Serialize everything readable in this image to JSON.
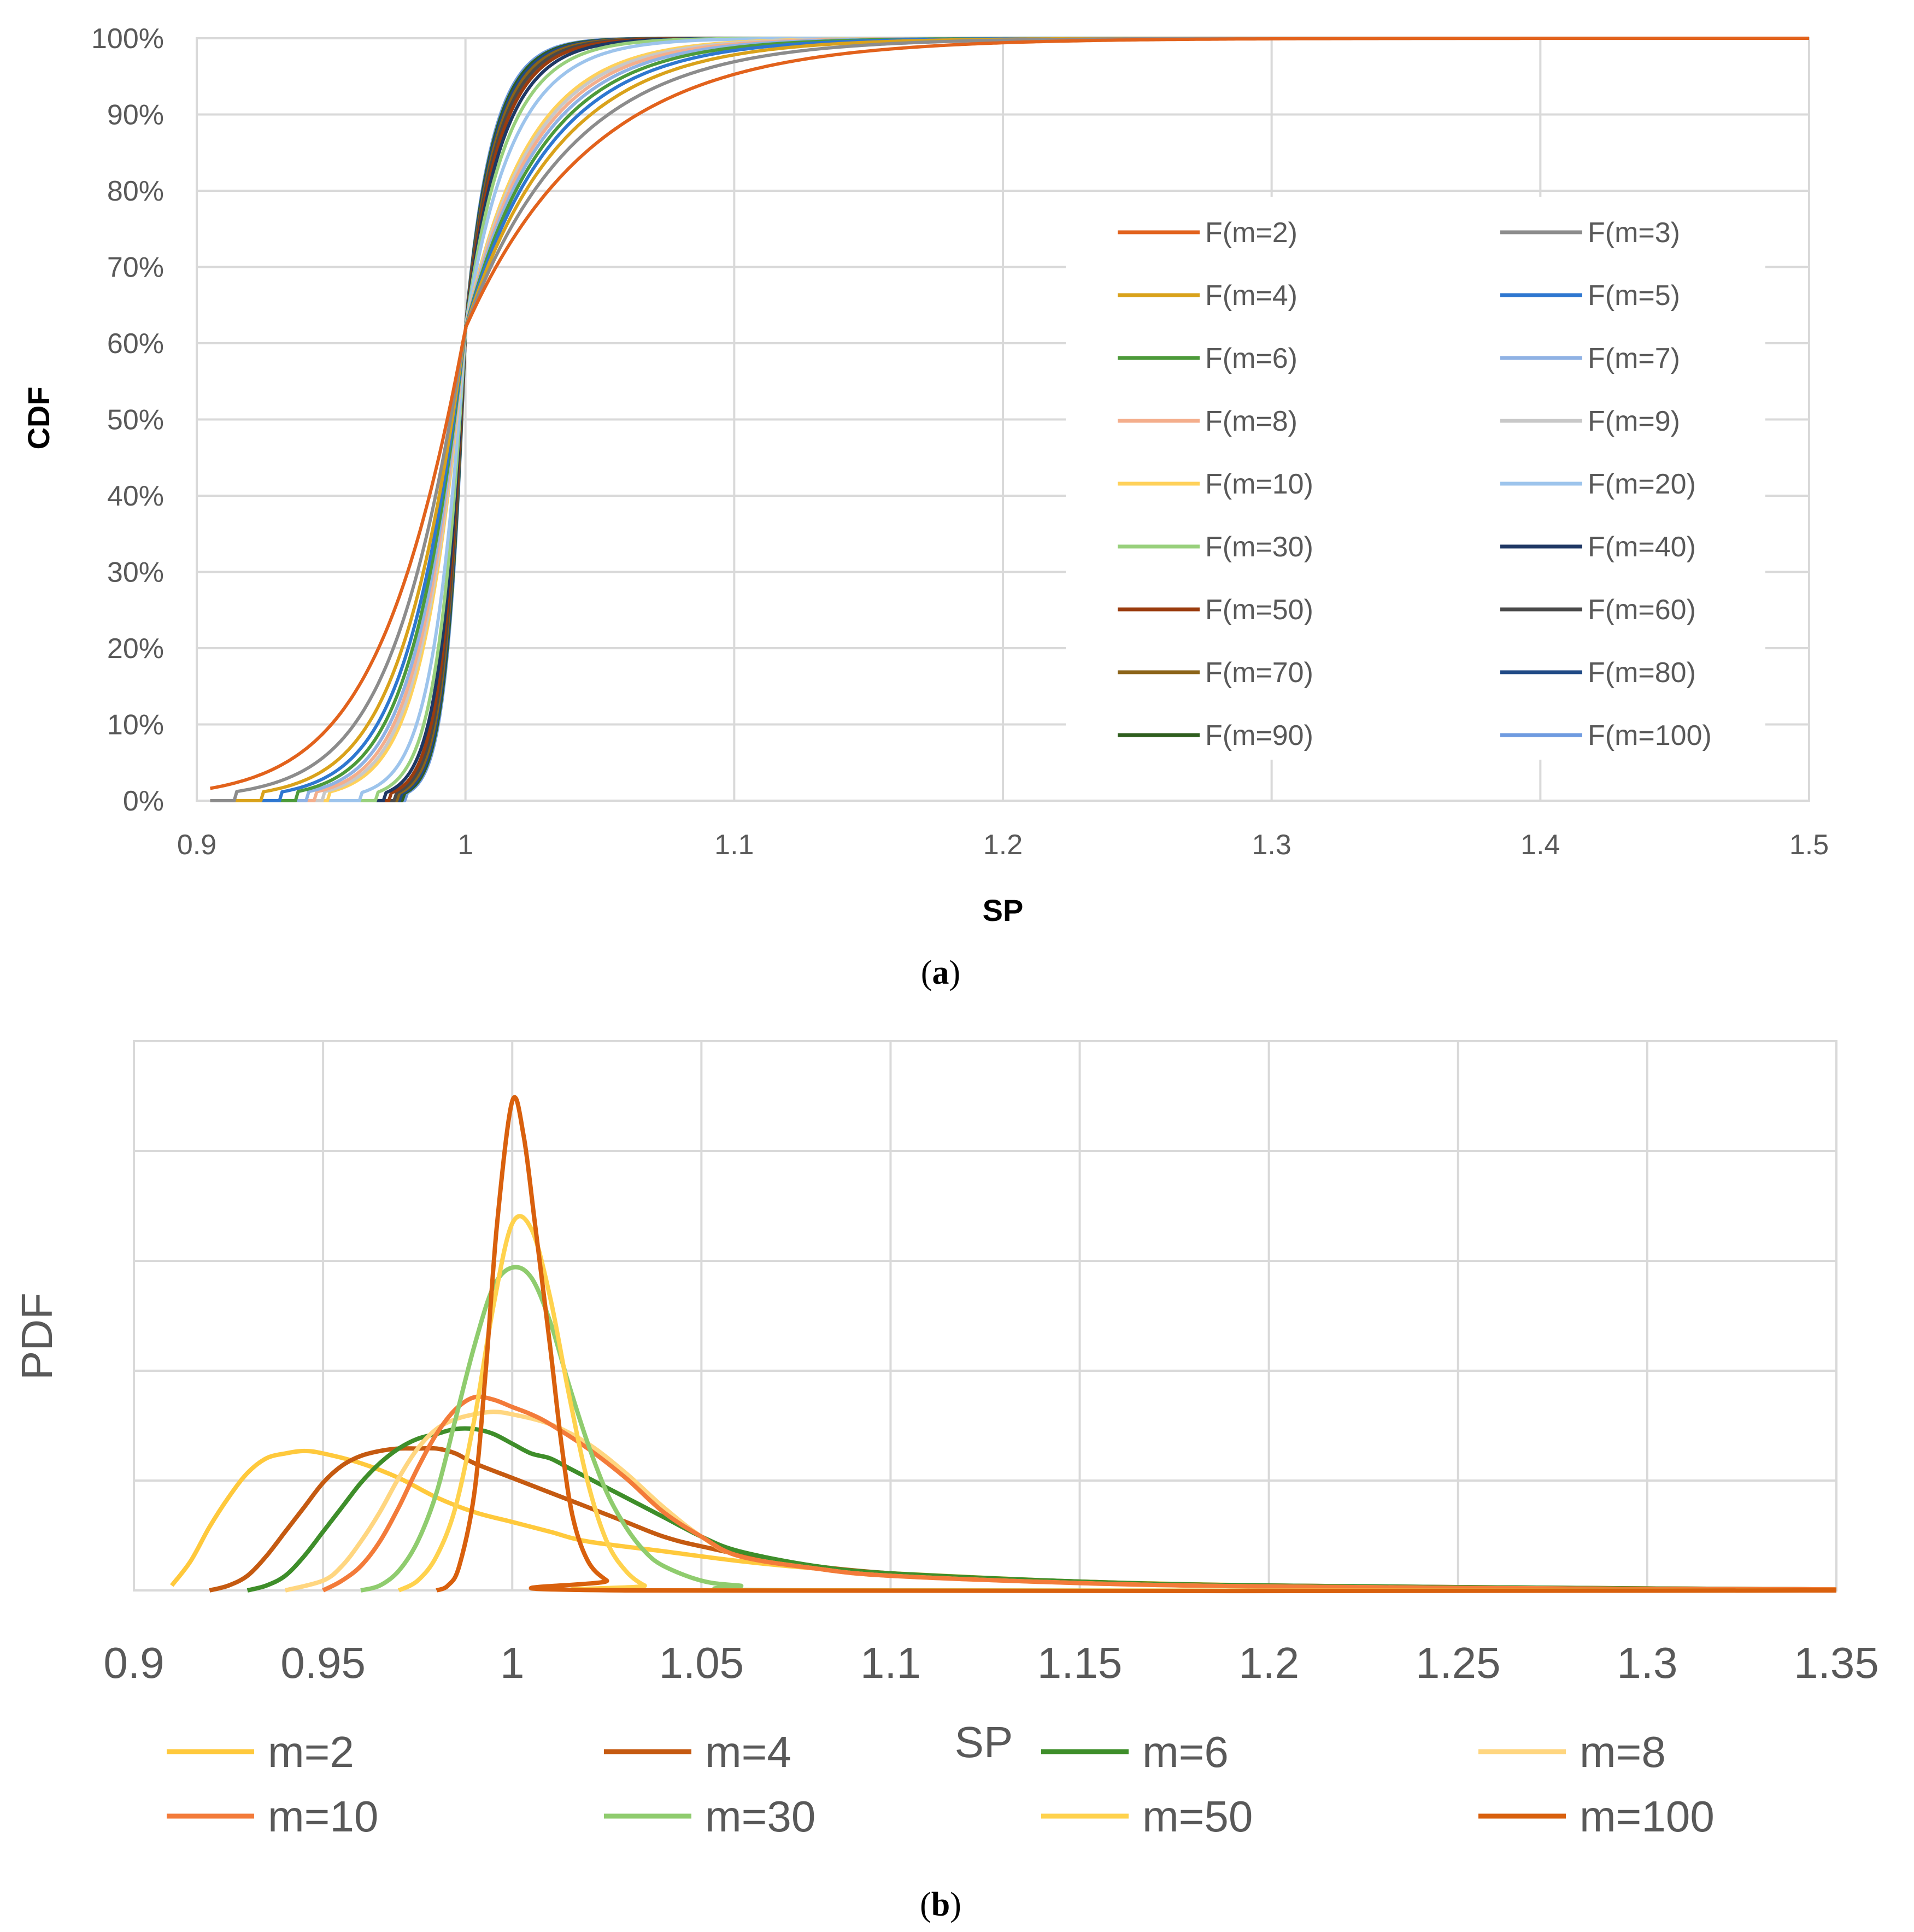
{
  "chart_data": [
    {
      "panel": "a",
      "caption_open": "(",
      "caption_letter": "a",
      "caption_close": ")",
      "type": "line",
      "xlabel": "SP",
      "ylabel": "CDF",
      "xlim": [
        0.9,
        1.5
      ],
      "ylim": [
        0,
        100
      ],
      "x_ticks": [
        "0.9",
        "1",
        "1.1",
        "1.2",
        "1.3",
        "1.4",
        "1.5"
      ],
      "y_ticks": [
        "0%",
        "10%",
        "20%",
        "30%",
        "40%",
        "50%",
        "60%",
        "70%",
        "80%",
        "90%",
        "100%"
      ],
      "grid": true,
      "legend_position": "right, inside plot",
      "series": [
        {
          "name": "F(m=2)",
          "m": 2,
          "color": "#E2621C"
        },
        {
          "name": "F(m=3)",
          "m": 3,
          "color": "#8C8C8C"
        },
        {
          "name": "F(m=4)",
          "m": 4,
          "color": "#D9A21B"
        },
        {
          "name": "F(m=5)",
          "m": 5,
          "color": "#2E77D0"
        },
        {
          "name": "F(m=6)",
          "m": 6,
          "color": "#4C9A39"
        },
        {
          "name": "F(m=7)",
          "m": 7,
          "color": "#8FB2E4"
        },
        {
          "name": "F(m=8)",
          "m": 8,
          "color": "#F4AE8C"
        },
        {
          "name": "F(m=9)",
          "m": 9,
          "color": "#C8C8C8"
        },
        {
          "name": "F(m=10)",
          "m": 10,
          "color": "#FFD15A"
        },
        {
          "name": "F(m=20)",
          "m": 20,
          "color": "#9DC4EC"
        },
        {
          "name": "F(m=30)",
          "m": 30,
          "color": "#98D07C"
        },
        {
          "name": "F(m=40)",
          "m": 40,
          "color": "#1F3864"
        },
        {
          "name": "F(m=50)",
          "m": 50,
          "color": "#9A3C0E"
        },
        {
          "name": "F(m=60)",
          "m": 60,
          "color": "#4A4A4A"
        },
        {
          "name": "F(m=70)",
          "m": 70,
          "color": "#8C6418"
        },
        {
          "name": "F(m=80)",
          "m": 80,
          "color": "#204A86"
        },
        {
          "name": "F(m=90)",
          "m": 90,
          "color": "#2F5E1E"
        },
        {
          "name": "F(m=100)",
          "m": 100,
          "color": "#6F9BE0"
        }
      ]
    },
    {
      "panel": "b",
      "caption_open": "(",
      "caption_letter": "b",
      "caption_close": ")",
      "type": "line",
      "xlabel": "SP",
      "ylabel": "PDF",
      "xlim": [
        0.9,
        1.35
      ],
      "x_ticks": [
        "0.9",
        "0.95",
        "1",
        "1.05",
        "1.1",
        "1.15",
        "1.2",
        "1.25",
        "1.3",
        "1.35"
      ],
      "y_ticks": [],
      "grid": true,
      "legend_position": "bottom",
      "series": [
        {
          "name": "m=2",
          "color": "#FFC93C",
          "points": [
            [
              0.91,
              0.01
            ],
            [
              0.915,
              0.06
            ],
            [
              0.92,
              0.13
            ],
            [
              0.925,
              0.19
            ],
            [
              0.93,
              0.24
            ],
            [
              0.935,
              0.27
            ],
            [
              0.94,
              0.28
            ],
            [
              0.945,
              0.285
            ],
            [
              0.95,
              0.28
            ],
            [
              0.96,
              0.26
            ],
            [
              0.97,
              0.23
            ],
            [
              0.98,
              0.19
            ],
            [
              0.99,
              0.16
            ],
            [
              1.0,
              0.14
            ],
            [
              1.01,
              0.12
            ],
            [
              1.02,
              0.1
            ],
            [
              1.04,
              0.08
            ],
            [
              1.06,
              0.06
            ],
            [
              1.08,
              0.045
            ],
            [
              1.1,
              0.035
            ],
            [
              1.15,
              0.018
            ],
            [
              1.2,
              0.01
            ],
            [
              1.25,
              0.006
            ],
            [
              1.3,
              0.004
            ],
            [
              1.35,
              0.002
            ]
          ]
        },
        {
          "name": "m=4",
          "color": "#C55A11",
          "points": [
            [
              0.92,
              0.0
            ],
            [
              0.925,
              0.01
            ],
            [
              0.93,
              0.03
            ],
            [
              0.935,
              0.07
            ],
            [
              0.94,
              0.12
            ],
            [
              0.945,
              0.17
            ],
            [
              0.95,
              0.22
            ],
            [
              0.955,
              0.255
            ],
            [
              0.96,
              0.275
            ],
            [
              0.965,
              0.285
            ],
            [
              0.97,
              0.29
            ],
            [
              0.975,
              0.29
            ],
            [
              0.98,
              0.29
            ],
            [
              0.985,
              0.28
            ],
            [
              0.99,
              0.26
            ],
            [
              1.0,
              0.23
            ],
            [
              1.01,
              0.2
            ],
            [
              1.02,
              0.17
            ],
            [
              1.03,
              0.14
            ],
            [
              1.04,
              0.11
            ],
            [
              1.05,
              0.09
            ],
            [
              1.07,
              0.06
            ],
            [
              1.1,
              0.035
            ],
            [
              1.15,
              0.018
            ],
            [
              1.2,
              0.01
            ],
            [
              1.3,
              0.004
            ],
            [
              1.35,
              0.002
            ]
          ]
        },
        {
          "name": "m=6",
          "color": "#3E8E2A",
          "points": [
            [
              0.93,
              0.0
            ],
            [
              0.935,
              0.01
            ],
            [
              0.94,
              0.03
            ],
            [
              0.945,
              0.07
            ],
            [
              0.95,
              0.12
            ],
            [
              0.955,
              0.17
            ],
            [
              0.96,
              0.22
            ],
            [
              0.965,
              0.26
            ],
            [
              0.97,
              0.29
            ],
            [
              0.975,
              0.31
            ],
            [
              0.98,
              0.32
            ],
            [
              0.985,
              0.33
            ],
            [
              0.99,
              0.33
            ],
            [
              0.995,
              0.32
            ],
            [
              1.0,
              0.3
            ],
            [
              1.005,
              0.28
            ],
            [
              1.01,
              0.27
            ],
            [
              1.015,
              0.25
            ],
            [
              1.02,
              0.23
            ],
            [
              1.03,
              0.19
            ],
            [
              1.04,
              0.15
            ],
            [
              1.05,
              0.11
            ],
            [
              1.06,
              0.08
            ],
            [
              1.08,
              0.05
            ],
            [
              1.1,
              0.035
            ],
            [
              1.15,
              0.018
            ],
            [
              1.2,
              0.01
            ],
            [
              1.3,
              0.004
            ],
            [
              1.35,
              0.002
            ]
          ]
        },
        {
          "name": "m=8",
          "color": "#FFD680",
          "points": [
            [
              0.94,
              0.0
            ],
            [
              0.95,
              0.02
            ],
            [
              0.955,
              0.05
            ],
            [
              0.96,
              0.1
            ],
            [
              0.965,
              0.16
            ],
            [
              0.97,
              0.23
            ],
            [
              0.975,
              0.29
            ],
            [
              0.98,
              0.33
            ],
            [
              0.985,
              0.35
            ],
            [
              0.99,
              0.36
            ],
            [
              0.995,
              0.365
            ],
            [
              1.0,
              0.36
            ],
            [
              1.01,
              0.34
            ],
            [
              1.02,
              0.3
            ],
            [
              1.03,
              0.24
            ],
            [
              1.04,
              0.17
            ],
            [
              1.05,
              0.11
            ],
            [
              1.06,
              0.07
            ],
            [
              1.08,
              0.045
            ],
            [
              1.1,
              0.03
            ],
            [
              1.15,
              0.015
            ],
            [
              1.2,
              0.008
            ],
            [
              1.3,
              0.003
            ],
            [
              1.35,
              0.002
            ]
          ]
        },
        {
          "name": "m=10",
          "color": "#F37B3A",
          "points": [
            [
              0.95,
              0.0
            ],
            [
              0.955,
              0.02
            ],
            [
              0.96,
              0.05
            ],
            [
              0.965,
              0.1
            ],
            [
              0.97,
              0.17
            ],
            [
              0.975,
              0.25
            ],
            [
              0.98,
              0.32
            ],
            [
              0.985,
              0.37
            ],
            [
              0.99,
              0.395
            ],
            [
              0.995,
              0.39
            ],
            [
              1.0,
              0.375
            ],
            [
              1.005,
              0.36
            ],
            [
              1.01,
              0.34
            ],
            [
              1.02,
              0.29
            ],
            [
              1.03,
              0.23
            ],
            [
              1.04,
              0.16
            ],
            [
              1.05,
              0.11
            ],
            [
              1.06,
              0.07
            ],
            [
              1.08,
              0.045
            ],
            [
              1.1,
              0.03
            ],
            [
              1.15,
              0.015
            ],
            [
              1.2,
              0.008
            ],
            [
              1.3,
              0.003
            ],
            [
              1.35,
              0.002
            ]
          ]
        },
        {
          "name": "m=30",
          "color": "#8FCC6E",
          "points": [
            [
              0.96,
              0.0
            ],
            [
              0.965,
              0.01
            ],
            [
              0.97,
              0.04
            ],
            [
              0.975,
              0.1
            ],
            [
              0.98,
              0.2
            ],
            [
              0.985,
              0.35
            ],
            [
              0.99,
              0.5
            ],
            [
              0.995,
              0.62
            ],
            [
              1.0,
              0.66
            ],
            [
              1.005,
              0.64
            ],
            [
              1.01,
              0.55
            ],
            [
              1.015,
              0.42
            ],
            [
              1.02,
              0.3
            ],
            [
              1.025,
              0.2
            ],
            [
              1.03,
              0.13
            ],
            [
              1.035,
              0.08
            ],
            [
              1.04,
              0.05
            ],
            [
              1.05,
              0.02
            ],
            [
              1.06,
              0.01
            ],
            [
              1.08,
              0.0
            ],
            [
              1.35,
              0.0
            ]
          ]
        },
        {
          "name": "m=50",
          "color": "#FFD24D",
          "points": [
            [
              0.97,
              0.0
            ],
            [
              0.975,
              0.02
            ],
            [
              0.98,
              0.07
            ],
            [
              0.985,
              0.17
            ],
            [
              0.99,
              0.35
            ],
            [
              0.995,
              0.58
            ],
            [
              1.0,
              0.75
            ],
            [
              1.005,
              0.74
            ],
            [
              1.01,
              0.6
            ],
            [
              1.015,
              0.4
            ],
            [
              1.02,
              0.22
            ],
            [
              1.025,
              0.1
            ],
            [
              1.03,
              0.04
            ],
            [
              1.035,
              0.01
            ],
            [
              1.04,
              0.0
            ],
            [
              1.35,
              0.0
            ]
          ]
        },
        {
          "name": "m=100",
          "color": "#D9600D",
          "points": [
            [
              0.98,
              0.0
            ],
            [
              0.983,
              0.01
            ],
            [
              0.986,
              0.05
            ],
            [
              0.99,
              0.2
            ],
            [
              0.993,
              0.45
            ],
            [
              0.996,
              0.75
            ],
            [
              1.0,
              1.0
            ],
            [
              1.003,
              0.93
            ],
            [
              1.006,
              0.75
            ],
            [
              1.01,
              0.5
            ],
            [
              1.013,
              0.3
            ],
            [
              1.016,
              0.15
            ],
            [
              1.02,
              0.06
            ],
            [
              1.025,
              0.02
            ],
            [
              1.03,
              0.0
            ],
            [
              1.35,
              0.0
            ]
          ]
        }
      ]
    }
  ]
}
